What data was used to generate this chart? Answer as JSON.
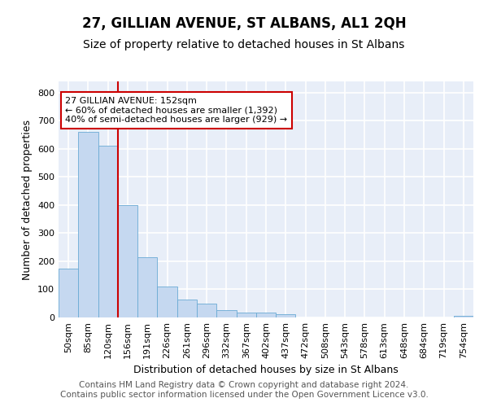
{
  "title": "27, GILLIAN AVENUE, ST ALBANS, AL1 2QH",
  "subtitle": "Size of property relative to detached houses in St Albans",
  "xlabel": "Distribution of detached houses by size in St Albans",
  "ylabel": "Number of detached properties",
  "bin_labels": [
    "50sqm",
    "85sqm",
    "120sqm",
    "156sqm",
    "191sqm",
    "226sqm",
    "261sqm",
    "296sqm",
    "332sqm",
    "367sqm",
    "402sqm",
    "437sqm",
    "472sqm",
    "508sqm",
    "543sqm",
    "578sqm",
    "613sqm",
    "648sqm",
    "684sqm",
    "719sqm",
    "754sqm"
  ],
  "bar_heights": [
    175,
    660,
    610,
    400,
    215,
    110,
    65,
    48,
    25,
    18,
    16,
    13,
    0,
    0,
    0,
    0,
    0,
    0,
    0,
    0,
    7
  ],
  "bar_color": "#c5d8f0",
  "bar_edge_color": "#6aaad4",
  "vline_x": 3.0,
  "vline_color": "#cc0000",
  "annotation_text": "27 GILLIAN AVENUE: 152sqm\n← 60% of detached houses are smaller (1,392)\n40% of semi-detached houses are larger (929) →",
  "annotation_box_color": "#ffffff",
  "annotation_box_edge": "#cc0000",
  "ylim": [
    0,
    840
  ],
  "yticks": [
    0,
    100,
    200,
    300,
    400,
    500,
    600,
    700,
    800
  ],
  "background_color": "#e8eef8",
  "grid_color": "#ffffff",
  "footer": "Contains HM Land Registry data © Crown copyright and database right 2024.\nContains public sector information licensed under the Open Government Licence v3.0.",
  "title_fontsize": 12,
  "subtitle_fontsize": 10,
  "xlabel_fontsize": 9,
  "ylabel_fontsize": 9,
  "footer_fontsize": 7.5,
  "tick_fontsize": 8
}
